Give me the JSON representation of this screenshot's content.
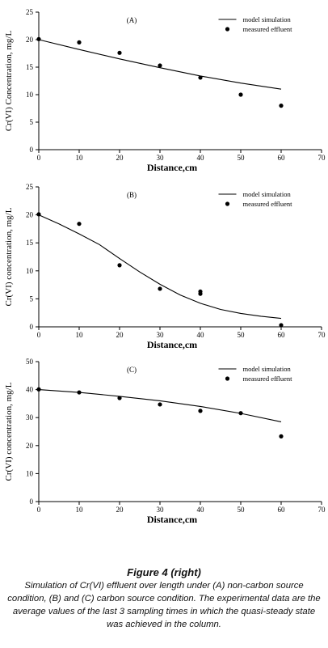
{
  "figure": {
    "caption_title": "Figure 4 (right)",
    "caption_text": "Simulation of Cr(VI) effluent over length under (A) non-carbon source condition, (B) and (C) carbon source condition. The experimental data are the average values of the last 3 sampling times in which the quasi-steady state was achieved in the column."
  },
  "chart_data": [
    {
      "type": "line",
      "panel_label": "(A)",
      "xlabel": "Distance,cm",
      "ylabel": "Cr(VI) Concentration, mg/L",
      "xlim": [
        0,
        70
      ],
      "ylim": [
        0,
        25
      ],
      "xticks": [
        0,
        10,
        20,
        30,
        40,
        50,
        60,
        70
      ],
      "yticks": [
        0,
        5,
        10,
        15,
        20,
        25
      ],
      "legend_position": "top-right",
      "series": [
        {
          "name": "model simulation",
          "kind": "line",
          "x": [
            0,
            10,
            20,
            30,
            40,
            50,
            60
          ],
          "y": [
            20,
            18.2,
            16.5,
            14.9,
            13.4,
            12.1,
            11.0
          ]
        },
        {
          "name": "measured effluent",
          "kind": "scatter",
          "x": [
            0,
            10,
            20,
            30,
            40,
            50,
            60
          ],
          "y": [
            20.1,
            19.5,
            17.6,
            15.3,
            13.1,
            10.0,
            8.0
          ]
        }
      ]
    },
    {
      "type": "line",
      "panel_label": "(B)",
      "xlabel": "Distance,cm",
      "ylabel": "Cr(VI) concentration, mg/L",
      "xlim": [
        0,
        70
      ],
      "ylim": [
        0,
        25
      ],
      "xticks": [
        0,
        10,
        20,
        30,
        40,
        50,
        60,
        70
      ],
      "yticks": [
        0,
        5,
        10,
        15,
        20,
        25
      ],
      "legend_position": "top-right",
      "series": [
        {
          "name": "model simulation",
          "kind": "line",
          "x": [
            0,
            5,
            10,
            15,
            20,
            25,
            30,
            35,
            40,
            45,
            50,
            55,
            60
          ],
          "y": [
            20.0,
            18.4,
            16.6,
            14.7,
            12.2,
            9.8,
            7.6,
            5.7,
            4.2,
            3.1,
            2.4,
            1.9,
            1.5
          ]
        },
        {
          "name": "measured effluent",
          "kind": "scatter",
          "x": [
            0,
            10,
            20,
            30,
            40,
            40,
            60
          ],
          "y": [
            20.1,
            18.4,
            11.0,
            6.8,
            6.3,
            5.9,
            0.3
          ]
        }
      ]
    },
    {
      "type": "line",
      "panel_label": "(C)",
      "xlabel": "Distance,cm",
      "ylabel": "Cr(VI) concentration, mg/L",
      "xlim": [
        0,
        70
      ],
      "ylim": [
        0,
        50
      ],
      "xticks": [
        0,
        10,
        20,
        30,
        40,
        50,
        60,
        70
      ],
      "yticks": [
        0,
        10,
        20,
        30,
        40,
        50
      ],
      "legend_position": "top-right",
      "series": [
        {
          "name": "model simulation",
          "kind": "line",
          "x": [
            0,
            10,
            20,
            30,
            40,
            50,
            60
          ],
          "y": [
            40.0,
            39.0,
            37.6,
            36.0,
            34.0,
            31.5,
            28.5
          ]
        },
        {
          "name": "measured effluent",
          "kind": "scatter",
          "x": [
            0,
            10,
            20,
            30,
            40,
            50,
            60
          ],
          "y": [
            40.1,
            39.0,
            37.0,
            34.7,
            32.4,
            31.6,
            23.3
          ]
        }
      ]
    }
  ]
}
